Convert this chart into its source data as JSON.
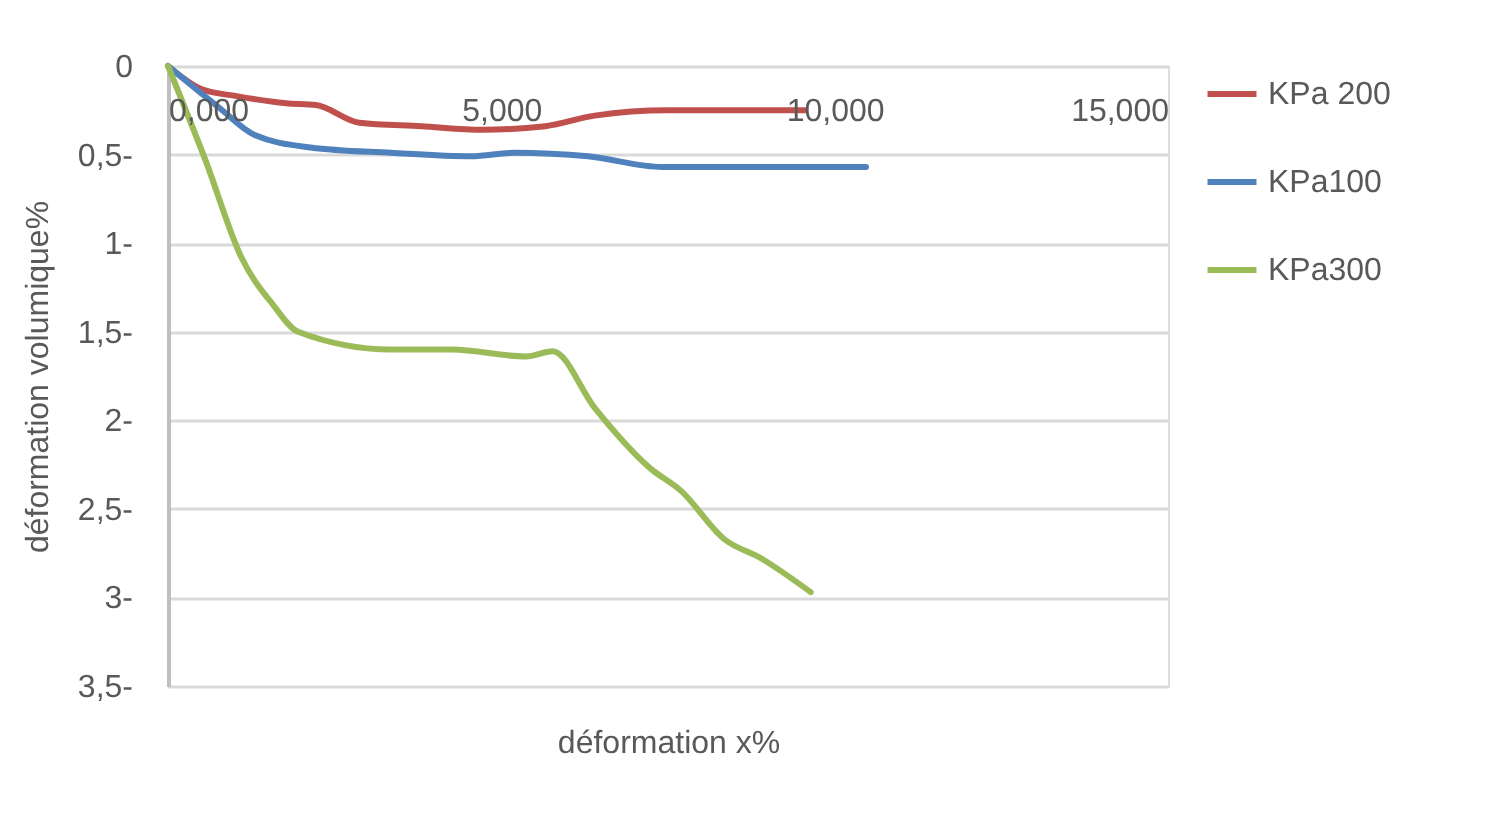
{
  "chart_data": {
    "type": "line",
    "xlabel": "déformation x%",
    "ylabel": "déformation volumique%",
    "xlim": [
      0,
      15
    ],
    "xticks": [
      {
        "value": 0,
        "label": "0,000"
      },
      {
        "value": 5,
        "label": "5,000"
      },
      {
        "value": 10,
        "label": "10,000"
      },
      {
        "value": 15,
        "label": "15,000"
      }
    ],
    "ylim": [
      -3.5,
      0
    ],
    "yticks": [
      0,
      {
        "value": -0.5,
        "label": "0,5-"
      },
      {
        "value": -1,
        "label": "1-"
      },
      {
        "value": -1.5,
        "label": "1,5-"
      },
      {
        "value": -2,
        "label": "2-"
      },
      {
        "value": -2.5,
        "label": "2,5-"
      },
      {
        "value": -3,
        "label": "3-"
      },
      {
        "value": -3.5,
        "label": "3,5-"
      }
    ],
    "grid": "y",
    "legend": "right",
    "marker": "none",
    "line_style": "solid",
    "series": [
      {
        "name": "KPa 200",
        "color": "#c0504d",
        "x": [
          0,
          0.5,
          1.03,
          1.77,
          2.22,
          2.87,
          3.8,
          4.72,
          5.66,
          6.4,
          7.5,
          9.55
        ],
        "values": [
          0,
          -0.13,
          -0.17,
          -0.21,
          -0.22,
          -0.32,
          -0.34,
          -0.36,
          -0.34,
          -0.28,
          -0.25,
          -0.25
        ]
      },
      {
        "name": "KPa100",
        "color": "#4f81bd",
        "x": [
          0,
          0.75,
          1.3,
          2.14,
          3.34,
          4.55,
          5.2,
          6.3,
          7.42,
          10.47
        ],
        "values": [
          0,
          -0.23,
          -0.39,
          -0.46,
          -0.49,
          -0.51,
          -0.49,
          -0.51,
          -0.57,
          -0.57
        ]
      },
      {
        "name": "KPa300",
        "color": "#9bbb59",
        "x": [
          0,
          0.56,
          1.1,
          1.58,
          1.95,
          3.34,
          4.26,
          5.37,
          5.77,
          6.4,
          7.23,
          7.7,
          8.34,
          8.9,
          9.64
        ],
        "values": [
          0,
          -0.53,
          -1.08,
          -1.35,
          -1.5,
          -1.6,
          -1.6,
          -1.64,
          -1.61,
          -1.93,
          -2.27,
          -2.4,
          -2.67,
          -2.78,
          -2.97
        ]
      }
    ]
  }
}
